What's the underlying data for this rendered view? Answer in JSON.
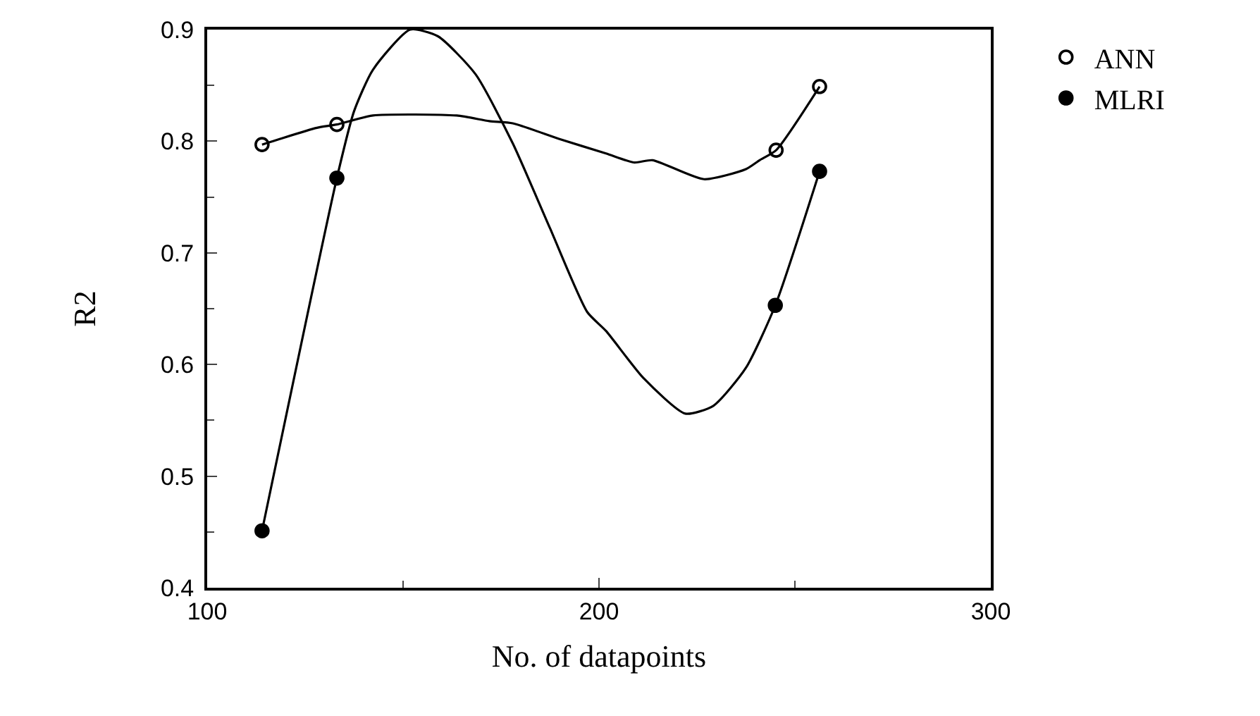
{
  "chart_data": {
    "type": "scatter",
    "xlabel": "No. of datapoints",
    "ylabel": "R2",
    "xlim": [
      100,
      300
    ],
    "xticks": [
      100,
      200,
      300
    ],
    "ylim": [
      0.4,
      0.9
    ],
    "yticks": [
      0.4,
      0.5,
      0.6,
      0.7,
      0.8,
      0.9
    ],
    "legend": "top right",
    "marker": "circle",
    "series": [
      {
        "name": "ANN",
        "marker": "circle-open",
        "color": "#000000",
        "x": [
          114,
          133.1,
          245.2,
          256.3
        ],
        "values": [
          0.797,
          0.815,
          0.792,
          0.849
        ]
      },
      {
        "name": "MLRI",
        "color": "#000000",
        "x": [
          114,
          133.1,
          245,
          256.3
        ],
        "values": [
          0.451,
          0.767,
          0.653,
          0.773
        ]
      },
      {
        "type": "line",
        "marker": "none",
        "color": "#000000",
        "x": [
          114,
          118.5,
          128,
          133.1,
          142.3,
          163.7,
          172,
          178,
          189.9,
          201.8,
          208.9,
          213.7,
          226.8,
          237.5,
          241,
          245.2,
          256.3
        ],
        "values": [
          0.797,
          0.802,
          0.812,
          0.815,
          0.823,
          0.823,
          0.818,
          0.816,
          0.802,
          0.789,
          0.781,
          0.783,
          0.766,
          0.775,
          0.783,
          0.792,
          0.849
        ]
      },
      {
        "type": "line",
        "marker": "none",
        "color": "#000000",
        "x": [
          114,
          133.1,
          137.5,
          142.3,
          151.8,
          158.9,
          168.5,
          178,
          187.5,
          197,
          201.8,
          211.3,
          222,
          229.2,
          237.5,
          245,
          256.3
        ],
        "values": [
          0.451,
          0.767,
          0.827,
          0.864,
          0.9,
          0.894,
          0.86,
          0.798,
          0.722,
          0.647,
          0.63,
          0.588,
          0.556,
          0.563,
          0.597,
          0.653,
          0.773
        ]
      }
    ]
  }
}
